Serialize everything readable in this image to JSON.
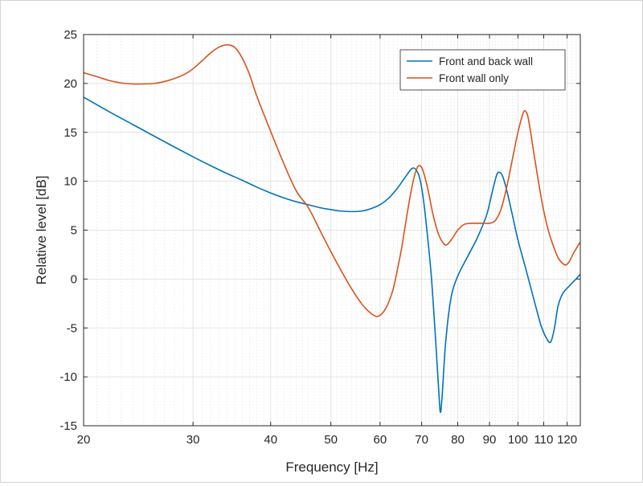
{
  "chart_data": {
    "type": "line",
    "xlabel": "Frequency [Hz]",
    "ylabel": "Relative level [dB]",
    "xscale": "log",
    "xlim": [
      20,
      126
    ],
    "ylim": [
      -15,
      25
    ],
    "xticks": [
      20,
      30,
      40,
      50,
      60,
      70,
      80,
      90,
      100,
      110,
      120
    ],
    "xtick_labels": [
      "20",
      "30",
      "40",
      "50",
      "60",
      "70",
      "80",
      "90",
      "100",
      "110",
      "120"
    ],
    "yticks": [
      -15,
      -10,
      -5,
      0,
      5,
      10,
      15,
      20,
      25
    ],
    "ytick_labels": [
      "-15",
      "-10",
      "-5",
      "0",
      "5",
      "10",
      "15",
      "20",
      "25"
    ],
    "grid": true,
    "minor_grid": true,
    "legend_position": "top-right",
    "series": [
      {
        "name": "Front and back wall",
        "color": "#0072BD",
        "points": [
          [
            20,
            18.6
          ],
          [
            22,
            17.1
          ],
          [
            24,
            15.8
          ],
          [
            26,
            14.6
          ],
          [
            28,
            13.5
          ],
          [
            30,
            12.5
          ],
          [
            32,
            11.6
          ],
          [
            34,
            10.8
          ],
          [
            36,
            10.1
          ],
          [
            38,
            9.4
          ],
          [
            40,
            8.8
          ],
          [
            42,
            8.3
          ],
          [
            44,
            7.9
          ],
          [
            46,
            7.6
          ],
          [
            48,
            7.3
          ],
          [
            50,
            7.1
          ],
          [
            52,
            6.95
          ],
          [
            54,
            6.9
          ],
          [
            56,
            6.95
          ],
          [
            58,
            7.2
          ],
          [
            60,
            7.6
          ],
          [
            62,
            8.3
          ],
          [
            64,
            9.3
          ],
          [
            66,
            10.5
          ],
          [
            67.5,
            11.3
          ],
          [
            68.5,
            11.2
          ],
          [
            69.5,
            10.3
          ],
          [
            70.5,
            8.0
          ],
          [
            71.5,
            4.5
          ],
          [
            72.5,
            0.5
          ],
          [
            73.5,
            -5.0
          ],
          [
            74.5,
            -11.0
          ],
          [
            75,
            -13.6
          ],
          [
            75.5,
            -12.0
          ],
          [
            76.5,
            -6.5
          ],
          [
            78,
            -2.0
          ],
          [
            80,
            0.3
          ],
          [
            83,
            2.3
          ],
          [
            86,
            4.2
          ],
          [
            89,
            6.5
          ],
          [
            91,
            9.0
          ],
          [
            92.5,
            10.7
          ],
          [
            93.5,
            10.9
          ],
          [
            94.5,
            10.5
          ],
          [
            96,
            9.0
          ],
          [
            98,
            6.5
          ],
          [
            100,
            4.0
          ],
          [
            103,
            1.0
          ],
          [
            106,
            -2.0
          ],
          [
            109,
            -4.8
          ],
          [
            111.5,
            -6.2
          ],
          [
            113,
            -6.4
          ],
          [
            114.5,
            -5.0
          ],
          [
            116,
            -2.8
          ],
          [
            118,
            -1.5
          ],
          [
            121,
            -0.7
          ],
          [
            124,
            0.0
          ],
          [
            126,
            0.5
          ]
        ]
      },
      {
        "name": "Front wall only",
        "color": "#D95319",
        "points": [
          [
            20,
            21.1
          ],
          [
            21,
            20.7
          ],
          [
            22,
            20.3
          ],
          [
            23,
            20.05
          ],
          [
            24,
            19.95
          ],
          [
            25,
            19.95
          ],
          [
            26,
            20.0
          ],
          [
            27,
            20.2
          ],
          [
            28,
            20.5
          ],
          [
            29,
            20.9
          ],
          [
            30,
            21.5
          ],
          [
            31,
            22.3
          ],
          [
            32,
            23.1
          ],
          [
            33,
            23.7
          ],
          [
            34,
            23.95
          ],
          [
            35,
            23.7
          ],
          [
            36,
            22.6
          ],
          [
            37,
            20.9
          ],
          [
            38,
            18.7
          ],
          [
            40,
            15.1
          ],
          [
            42,
            11.8
          ],
          [
            44,
            9.0
          ],
          [
            46,
            7.3
          ],
          [
            48,
            5.0
          ],
          [
            50,
            2.8
          ],
          [
            52,
            0.8
          ],
          [
            54,
            -1.0
          ],
          [
            56,
            -2.5
          ],
          [
            57.5,
            -3.3
          ],
          [
            59,
            -3.8
          ],
          [
            60,
            -3.7
          ],
          [
            61,
            -3.2
          ],
          [
            62,
            -2.3
          ],
          [
            63,
            -1.0
          ],
          [
            64,
            1.0
          ],
          [
            65,
            3.2
          ],
          [
            66,
            5.8
          ],
          [
            67,
            8.3
          ],
          [
            68,
            10.3
          ],
          [
            69,
            11.5
          ],
          [
            70,
            11.4
          ],
          [
            71,
            10.2
          ],
          [
            72,
            8.5
          ],
          [
            73,
            6.6
          ],
          [
            74.5,
            4.6
          ],
          [
            76,
            3.6
          ],
          [
            77,
            3.55
          ],
          [
            78.5,
            4.2
          ],
          [
            80,
            5.0
          ],
          [
            82,
            5.6
          ],
          [
            85,
            5.7
          ],
          [
            88,
            5.7
          ],
          [
            90,
            5.7
          ],
          [
            92,
            6.0
          ],
          [
            94,
            7.2
          ],
          [
            96,
            9.5
          ],
          [
            98,
            12.3
          ],
          [
            100,
            15.0
          ],
          [
            102,
            17.0
          ],
          [
            103,
            17.1
          ],
          [
            104,
            16.3
          ],
          [
            106,
            13.0
          ],
          [
            108,
            9.8
          ],
          [
            110,
            7.0
          ],
          [
            112,
            4.9
          ],
          [
            114,
            3.4
          ],
          [
            116,
            2.2
          ],
          [
            118,
            1.6
          ],
          [
            119.5,
            1.45
          ],
          [
            121,
            1.8
          ],
          [
            123,
            2.7
          ],
          [
            126,
            3.8
          ]
        ]
      }
    ]
  }
}
